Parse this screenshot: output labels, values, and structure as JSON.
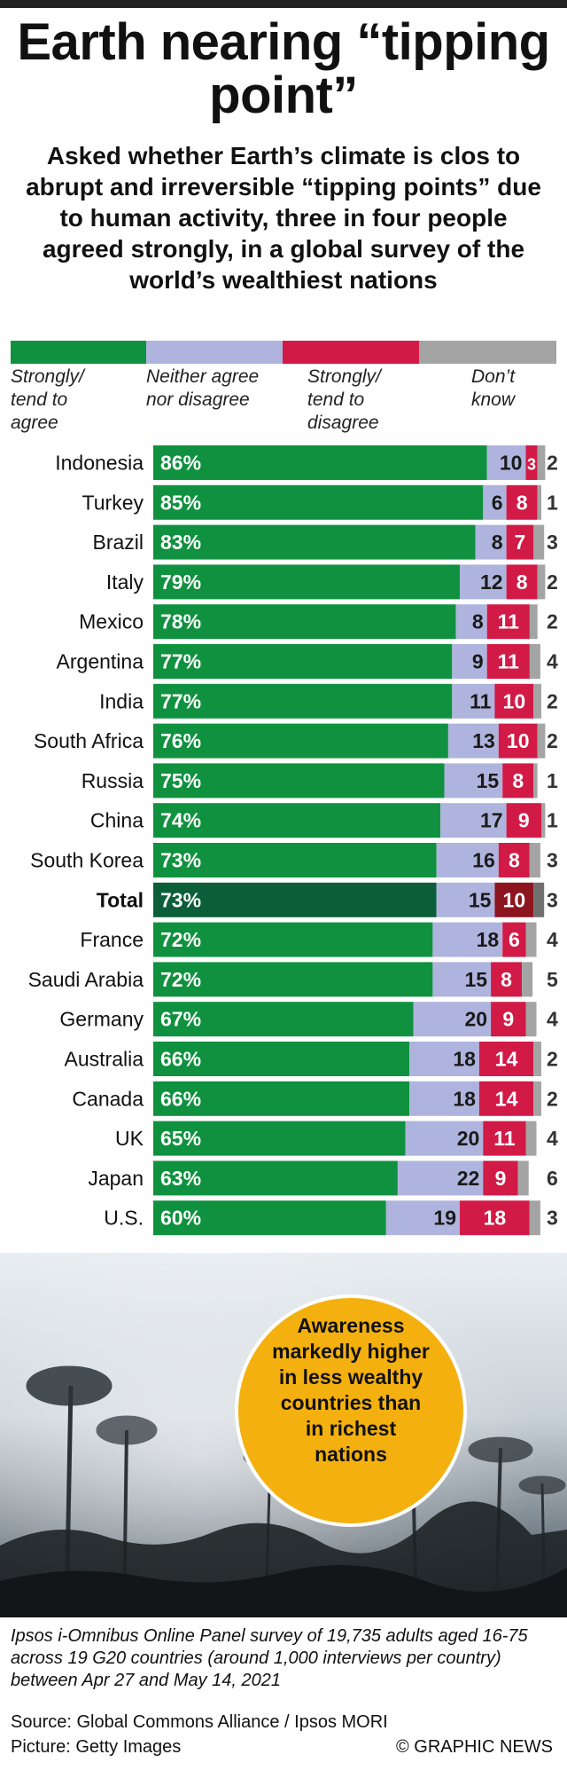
{
  "title": "Earth nearing “tipping point”",
  "subtitle": "Asked whether Earth’s climate is clos to abrupt and irreversible “tipping points” due to human activity, three in four people agreed strongly, in a global survey of the world’s wealthiest nations",
  "legend": [
    {
      "label": "Strongly/ tend to agree",
      "color": "#10913f"
    },
    {
      "label": "Neither agree nor disagree",
      "color": "#aeb4dd"
    },
    {
      "label": "Strongly/ tend to disagree",
      "color": "#d21a46"
    },
    {
      "label": "Don’t know",
      "color": "#a4a4a4"
    }
  ],
  "chart_data": {
    "type": "bar",
    "stacked": true,
    "orientation": "horizontal",
    "categories": [
      "Indonesia",
      "Turkey",
      "Brazil",
      "Italy",
      "Mexico",
      "Argentina",
      "India",
      "South Africa",
      "Russia",
      "China",
      "South Korea",
      "Total",
      "France",
      "Saudi Arabia",
      "Germany",
      "Australia",
      "Canada",
      "UK",
      "Japan",
      "U.S."
    ],
    "highlight_category": "Total",
    "series": [
      {
        "name": "Strongly/ tend to agree",
        "values": [
          86,
          85,
          83,
          79,
          78,
          77,
          77,
          76,
          75,
          74,
          73,
          73,
          72,
          72,
          67,
          66,
          66,
          65,
          63,
          60
        ],
        "color": "#10913f",
        "highlight_color": "#0b5e38"
      },
      {
        "name": "Neither agree nor disagree",
        "values": [
          10,
          6,
          8,
          12,
          8,
          9,
          11,
          13,
          15,
          17,
          16,
          15,
          18,
          15,
          20,
          18,
          18,
          20,
          22,
          19
        ],
        "color": "#aeb4dd",
        "highlight_color": "#aeb4dd"
      },
      {
        "name": "Strongly/ tend to disagree",
        "values": [
          3,
          8,
          7,
          8,
          11,
          11,
          10,
          10,
          8,
          9,
          8,
          10,
          6,
          8,
          9,
          14,
          14,
          11,
          9,
          18
        ],
        "color": "#d21a46",
        "highlight_color": "#8d1520"
      },
      {
        "name": "Don’t know",
        "values": [
          2,
          1,
          3,
          2,
          2,
          4,
          2,
          2,
          1,
          1,
          3,
          3,
          4,
          5,
          4,
          2,
          2,
          4,
          6,
          3
        ],
        "color": "#a4a4a4",
        "highlight_color": "#6f6f6f"
      }
    ],
    "first_series_suffix": "%",
    "xlim": [
      0,
      100
    ]
  },
  "callout": "Awareness markedly higher in less wealthy countries than in richest nations",
  "note": "Ipsos i-Omnibus Online Panel survey of 19,735 adults aged 16-75 across 19 G20 countries (around 1,000 interviews per country) between Apr 27 and May 14, 2021",
  "source": "Source: Global Commons Alliance / Ipsos MORI",
  "picture": "Picture: Getty Images",
  "credit": "© GRAPHIC NEWS",
  "colors": {
    "callout_fill": "#f4b00e",
    "callout_stroke": "#ffffff",
    "topbar": "#222222"
  }
}
